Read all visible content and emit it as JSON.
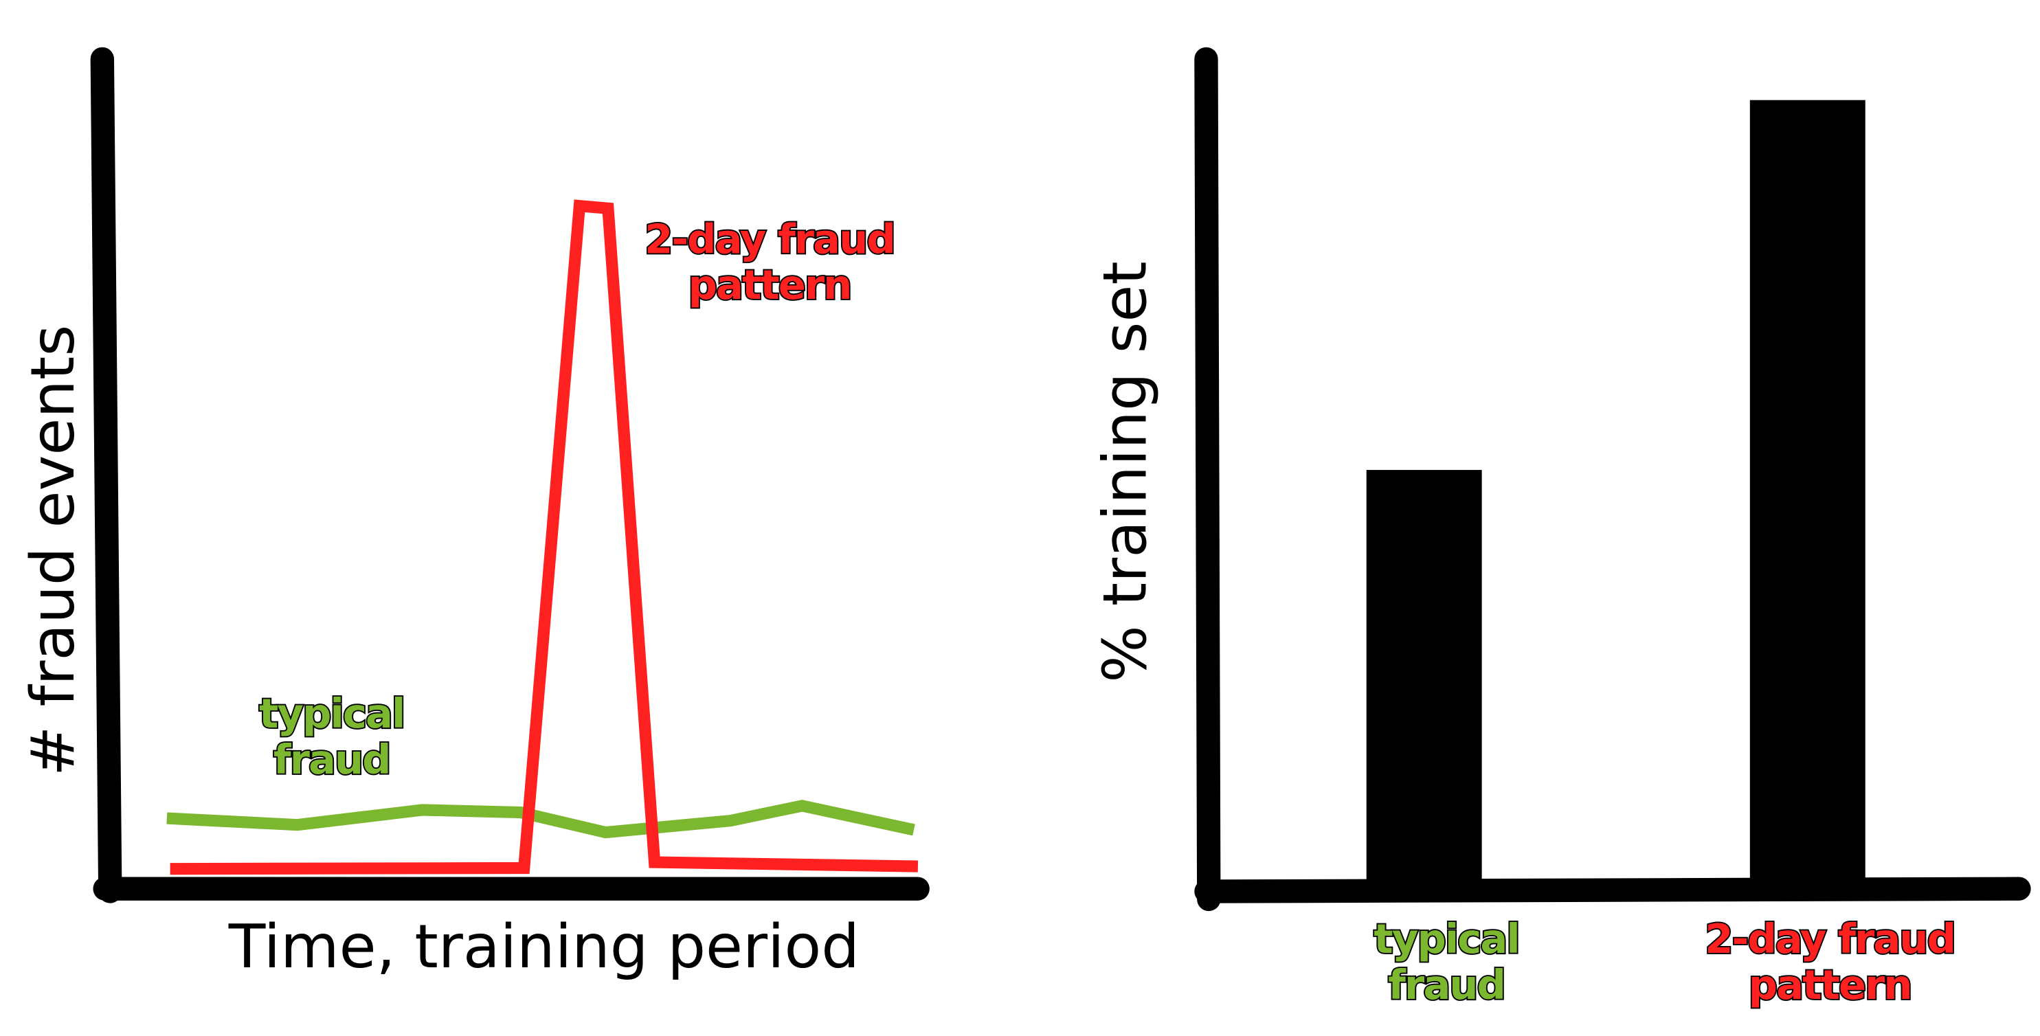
{
  "chart_data": [
    {
      "type": "line",
      "ylabel": "# fraud events",
      "xlabel": "Time, training period",
      "xlim": [
        0,
        100
      ],
      "ylim": [
        0,
        100
      ],
      "series": [
        {
          "name": "typical fraud",
          "color": "#7cb82f",
          "x": [
            7.6,
            23.6,
            38.9,
            51.0,
            61.4,
            76.7,
            85.5,
            99.2
          ],
          "values": [
            8.5,
            7.7,
            9.5,
            9.2,
            6.8,
            8.2,
            10.0,
            7.1
          ]
        },
        {
          "name": "2-day fraud pattern",
          "color": "#ff2020",
          "x": [
            8.0,
            51.4,
            58.2,
            61.7,
            67.4,
            99.7
          ],
          "values": [
            2.4,
            2.5,
            82.3,
            82.0,
            3.2,
            2.7
          ]
        }
      ]
    },
    {
      "type": "bar",
      "ylabel": "% training set",
      "ylim": [
        0,
        100
      ],
      "categories": [
        "typical fraud",
        "2-day fraud pattern"
      ],
      "category_colors": [
        "#7cb82f",
        "#ff2020"
      ],
      "color": "#000000",
      "values": [
        50,
        95
      ]
    }
  ]
}
